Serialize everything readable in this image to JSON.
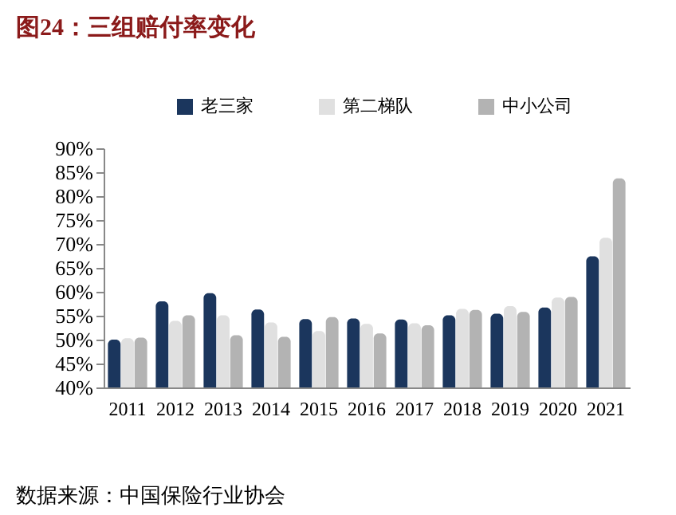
{
  "chart_data": {
    "type": "bar",
    "title": "图24：三组赔付率变化",
    "categories": [
      "2011",
      "2012",
      "2013",
      "2014",
      "2015",
      "2016",
      "2017",
      "2018",
      "2019",
      "2020",
      "2021"
    ],
    "series": [
      {
        "name": "老三家",
        "color": "#1b365d",
        "values": [
          50.0,
          58.0,
          59.7,
          56.3,
          54.3,
          54.4,
          54.2,
          55.1,
          55.4,
          56.7,
          67.4
        ]
      },
      {
        "name": "第二梯队",
        "color": "#e0e0e0",
        "values": [
          50.3,
          53.9,
          55.1,
          53.6,
          51.8,
          53.3,
          53.4,
          56.4,
          57.0,
          58.8,
          71.3
        ]
      },
      {
        "name": "中小公司",
        "color": "#b3b3b3",
        "values": [
          50.4,
          55.1,
          50.9,
          50.6,
          54.7,
          51.3,
          53.0,
          56.2,
          55.8,
          58.9,
          83.7
        ]
      }
    ],
    "ylim": [
      40,
      90
    ],
    "yticks": [
      {
        "value": 40,
        "label": "40%"
      },
      {
        "value": 45,
        "label": "45%"
      },
      {
        "value": 50,
        "label": "50%"
      },
      {
        "value": 55,
        "label": "55%"
      },
      {
        "value": 60,
        "label": "60%"
      },
      {
        "value": 65,
        "label": "65%"
      },
      {
        "value": 70,
        "label": "70%"
      },
      {
        "value": 75,
        "label": "75%"
      },
      {
        "value": 80,
        "label": "80%"
      },
      {
        "value": 85,
        "label": "85%"
      },
      {
        "value": 90,
        "label": "90%"
      }
    ],
    "grid": false,
    "legend": "top",
    "annotations": [
      "数据来源：中国保险行业协会"
    ]
  }
}
